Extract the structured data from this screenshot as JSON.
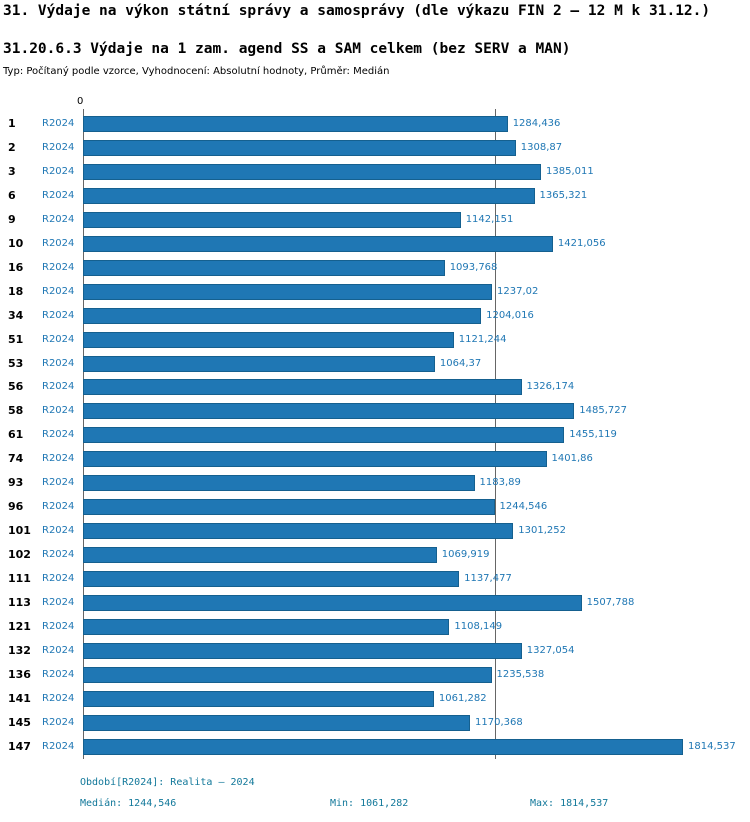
{
  "header": {
    "title": "31. Výdaje na výkon státní správy a samosprávy (dle výkazu FIN 2 – 12 M k 31.12.)",
    "subtitle": "31.20.6.3 Výdaje na 1 zam. agend SS a SAM celkem (bez SERV a MAN)",
    "meta": "Typ: Počítaný podle vzorce, Vyhodnocení: Absolutní hodnoty, Průměr: Medián"
  },
  "chart_data": {
    "type": "bar",
    "orientation": "horizontal",
    "title": "31.20.6.3 Výdaje na 1 zam. agend SS a SAM celkem (bez SERV a MAN)",
    "series_label": "R2024",
    "zero_label": "0",
    "categories": [
      "1",
      "2",
      "3",
      "6",
      "9",
      "10",
      "16",
      "18",
      "34",
      "51",
      "53",
      "56",
      "58",
      "61",
      "74",
      "93",
      "96",
      "101",
      "102",
      "111",
      "113",
      "121",
      "132",
      "136",
      "141",
      "145",
      "147"
    ],
    "values": [
      1284.436,
      1308.87,
      1385.011,
      1365.321,
      1142.151,
      1421.056,
      1093.768,
      1237.02,
      1204.016,
      1121.244,
      1064.37,
      1326.174,
      1485.727,
      1455.119,
      1401.86,
      1183.89,
      1244.546,
      1301.252,
      1069.919,
      1137.477,
      1507.788,
      1108.149,
      1327.054,
      1235.538,
      1061.282,
      1170.368,
      1814.537
    ],
    "value_labels": [
      "1284,436",
      "1308,87",
      "1385,011",
      "1365,321",
      "1142,151",
      "1421,056",
      "1093,768",
      "1237,02",
      "1204,016",
      "1121,244",
      "1064,37",
      "1326,174",
      "1485,727",
      "1455,119",
      "1401,86",
      "1183,89",
      "1244,546",
      "1301,252",
      "1069,919",
      "1137,477",
      "1507,788",
      "1108,149",
      "1327,054",
      "1235,538",
      "1061,282",
      "1170,368",
      "1814,537"
    ],
    "xlim": [
      0,
      1814.537
    ],
    "median_value": 1244.546,
    "grid": "single vertical reference line at median",
    "legend_position": "none"
  },
  "footer": {
    "period": "Období[R2024]: Realita – 2024",
    "median": "Medián: 1244,546",
    "min": "Min: 1061,282",
    "max": "Max: 1814,537"
  },
  "colors": {
    "bar": "#1f77b4",
    "bar_border": "#15608f",
    "label_blue": "#1f77b4",
    "footer_teal": "#12789a",
    "median_line": "#666666"
  }
}
